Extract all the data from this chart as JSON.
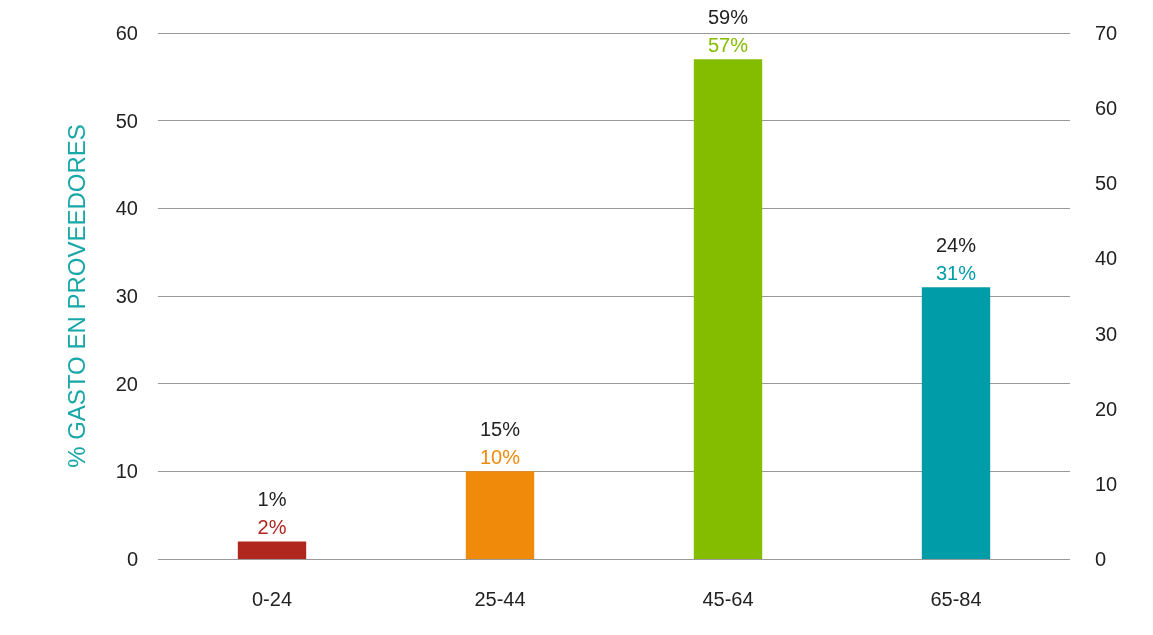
{
  "chart_data": {
    "type": "bar",
    "ylabel": "% GASTO EN PROVEEDORES",
    "categories": [
      "0-24",
      "25-44",
      "45-64",
      "65-84"
    ],
    "values": [
      2,
      10,
      57,
      31
    ],
    "colors": [
      "#b0271f",
      "#f08a0a",
      "#84bd00",
      "#009da8"
    ],
    "value_labels": [
      "2%",
      "10%",
      "57%",
      "31%"
    ],
    "ylim": [
      0,
      60
    ],
    "yticks": [
      0,
      10,
      20,
      30,
      40,
      50,
      60
    ],
    "y2lim": [
      0,
      70
    ],
    "y2ticks": [
      0,
      10,
      20,
      30,
      40,
      50,
      60,
      70
    ],
    "grid": "y",
    "annotations": [
      "1%",
      "15%",
      "59%",
      "24%"
    ]
  }
}
